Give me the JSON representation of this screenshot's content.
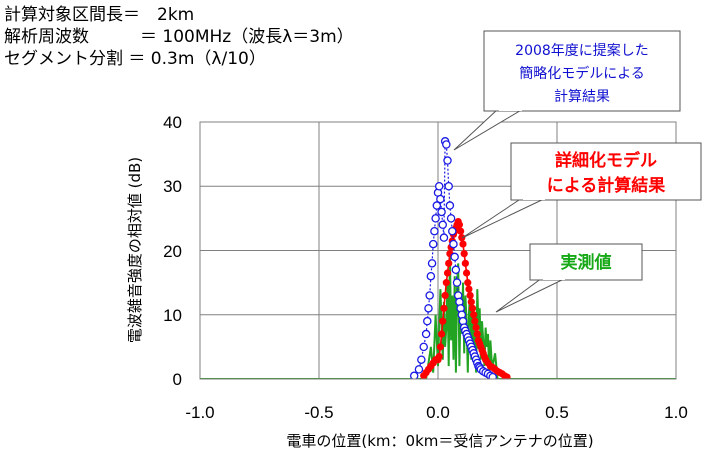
{
  "params": {
    "line1": "計算対象区間長＝　2km",
    "line2": "解析周波数　　　＝ 100MHz（波長λ＝3m）",
    "line3": "セグメント分割 ＝ 0.3m（λ/10）"
  },
  "colors": {
    "measured": "#22a322",
    "detailed": "#ff0000",
    "simplified": "#1a1ae6",
    "callout_green_text": "#16a816",
    "callout_red_text": "#ff0000",
    "callout_blue_text": "#1010d0"
  },
  "callouts": {
    "simplified": [
      "2008年度に提案した",
      "簡略化モデルによる",
      "計算結果"
    ],
    "detailed": [
      "詳細化モデル",
      "による計算結果"
    ],
    "measured": [
      "実測値"
    ]
  },
  "chart_data": {
    "type": "line",
    "xlabel": "電車の位置(km：0km＝受信アンテナの位置)",
    "ylabel": "電波雑音強度の相対値 (dB)",
    "xlim": [
      -1.0,
      1.0
    ],
    "ylim": [
      0,
      40
    ],
    "xticks": [
      "-1.0",
      "-0.5",
      "0.0",
      "0.5",
      "1.0"
    ],
    "yticks": [
      "0",
      "10",
      "20",
      "30",
      "40"
    ],
    "grid": true,
    "series": [
      {
        "name": "実測値",
        "style": "line",
        "x": [
          -1.0,
          -0.6,
          -0.2,
          -0.05,
          -0.03,
          -0.02,
          -0.01,
          0.0,
          0.01,
          0.02,
          0.025,
          0.03,
          0.035,
          0.04,
          0.045,
          0.05,
          0.055,
          0.06,
          0.065,
          0.07,
          0.075,
          0.08,
          0.085,
          0.09,
          0.095,
          0.1,
          0.105,
          0.11,
          0.115,
          0.12,
          0.125,
          0.13,
          0.135,
          0.14,
          0.145,
          0.15,
          0.155,
          0.16,
          0.165,
          0.17,
          0.175,
          0.18,
          0.185,
          0.19,
          0.195,
          0.2,
          0.205,
          0.21,
          0.215,
          0.22,
          0.225,
          0.23,
          0.24,
          0.25,
          0.3,
          0.6,
          1.0
        ],
        "y": [
          0,
          0,
          0,
          0,
          5,
          1,
          10,
          2,
          14,
          3,
          12,
          5,
          8,
          15,
          2,
          20,
          6,
          13,
          3,
          16,
          1,
          14,
          18,
          2,
          12,
          7,
          15,
          4,
          13,
          9,
          1,
          10,
          14,
          3,
          12,
          5,
          10,
          1,
          14,
          8,
          11,
          3,
          9,
          6,
          2,
          8,
          5,
          7,
          1,
          6,
          3,
          2,
          4,
          0,
          0,
          0,
          0
        ]
      },
      {
        "name": "詳細化モデル",
        "style": "dots",
        "x": [
          -0.06,
          -0.05,
          -0.04,
          -0.03,
          -0.02,
          -0.01,
          0.0,
          0.005,
          0.01,
          0.015,
          0.02,
          0.025,
          0.03,
          0.035,
          0.04,
          0.045,
          0.05,
          0.055,
          0.06,
          0.065,
          0.07,
          0.075,
          0.08,
          0.085,
          0.09,
          0.095,
          0.1,
          0.105,
          0.11,
          0.115,
          0.12,
          0.125,
          0.13,
          0.135,
          0.14,
          0.145,
          0.15,
          0.155,
          0.16,
          0.165,
          0.17,
          0.175,
          0.18,
          0.185,
          0.19,
          0.195,
          0.2,
          0.21,
          0.22,
          0.23,
          0.24,
          0.25,
          0.26,
          0.27,
          0.28,
          0.29
        ],
        "y": [
          0.5,
          1.0,
          1.5,
          2.0,
          2.5,
          3.0,
          3.0,
          3.5,
          5.0,
          7.0,
          9.0,
          11.0,
          13.0,
          15.0,
          16.5,
          18.0,
          19.5,
          20.5,
          21.5,
          22.5,
          23.0,
          23.5,
          24.0,
          24.5,
          24.0,
          23.0,
          22.0,
          21.0,
          19.5,
          18.0,
          16.5,
          15.0,
          14.0,
          13.0,
          12.0,
          11.0,
          10.0,
          9.0,
          8.0,
          7.0,
          6.0,
          5.5,
          5.0,
          4.5,
          4.0,
          3.5,
          3.0,
          2.5,
          2.0,
          1.8,
          1.5,
          1.2,
          1.0,
          0.8,
          0.5,
          0.3
        ]
      },
      {
        "name": "簡略化モデル",
        "style": "circles-dotted",
        "x": [
          -0.1,
          -0.08,
          -0.07,
          -0.06,
          -0.05,
          -0.045,
          -0.04,
          -0.035,
          -0.03,
          -0.025,
          -0.02,
          -0.015,
          -0.01,
          -0.005,
          0.0,
          0.005,
          0.01,
          0.015,
          0.02,
          0.025,
          0.03,
          0.035,
          0.04,
          0.045,
          0.05,
          0.055,
          0.06,
          0.065,
          0.07,
          0.075,
          0.08,
          0.085,
          0.09,
          0.095,
          0.1,
          0.105,
          0.11,
          0.115,
          0.12,
          0.125,
          0.13,
          0.135,
          0.14,
          0.145,
          0.15,
          0.155,
          0.16,
          0.165,
          0.17,
          0.175,
          0.18,
          0.19,
          0.2,
          0.21,
          0.22,
          0.23
        ],
        "y": [
          0.5,
          1.5,
          3.0,
          5.0,
          7.0,
          9.0,
          11.0,
          13.0,
          16.0,
          18.0,
          21.0,
          23.0,
          25.0,
          27.0,
          29.0,
          30.0,
          28.0,
          26.0,
          24.0,
          22.0,
          37.0,
          36.5,
          34.0,
          30.0,
          27.0,
          25.0,
          23.0,
          21.0,
          19.0,
          17.0,
          15.0,
          13.0,
          12.0,
          11.0,
          10.0,
          9.0,
          8.0,
          7.5,
          7.0,
          6.5,
          6.0,
          5.5,
          5.0,
          4.5,
          4.0,
          3.5,
          3.0,
          2.5,
          2.0,
          1.8,
          1.5,
          1.2,
          1.0,
          0.8,
          0.5,
          0.3
        ]
      }
    ]
  }
}
